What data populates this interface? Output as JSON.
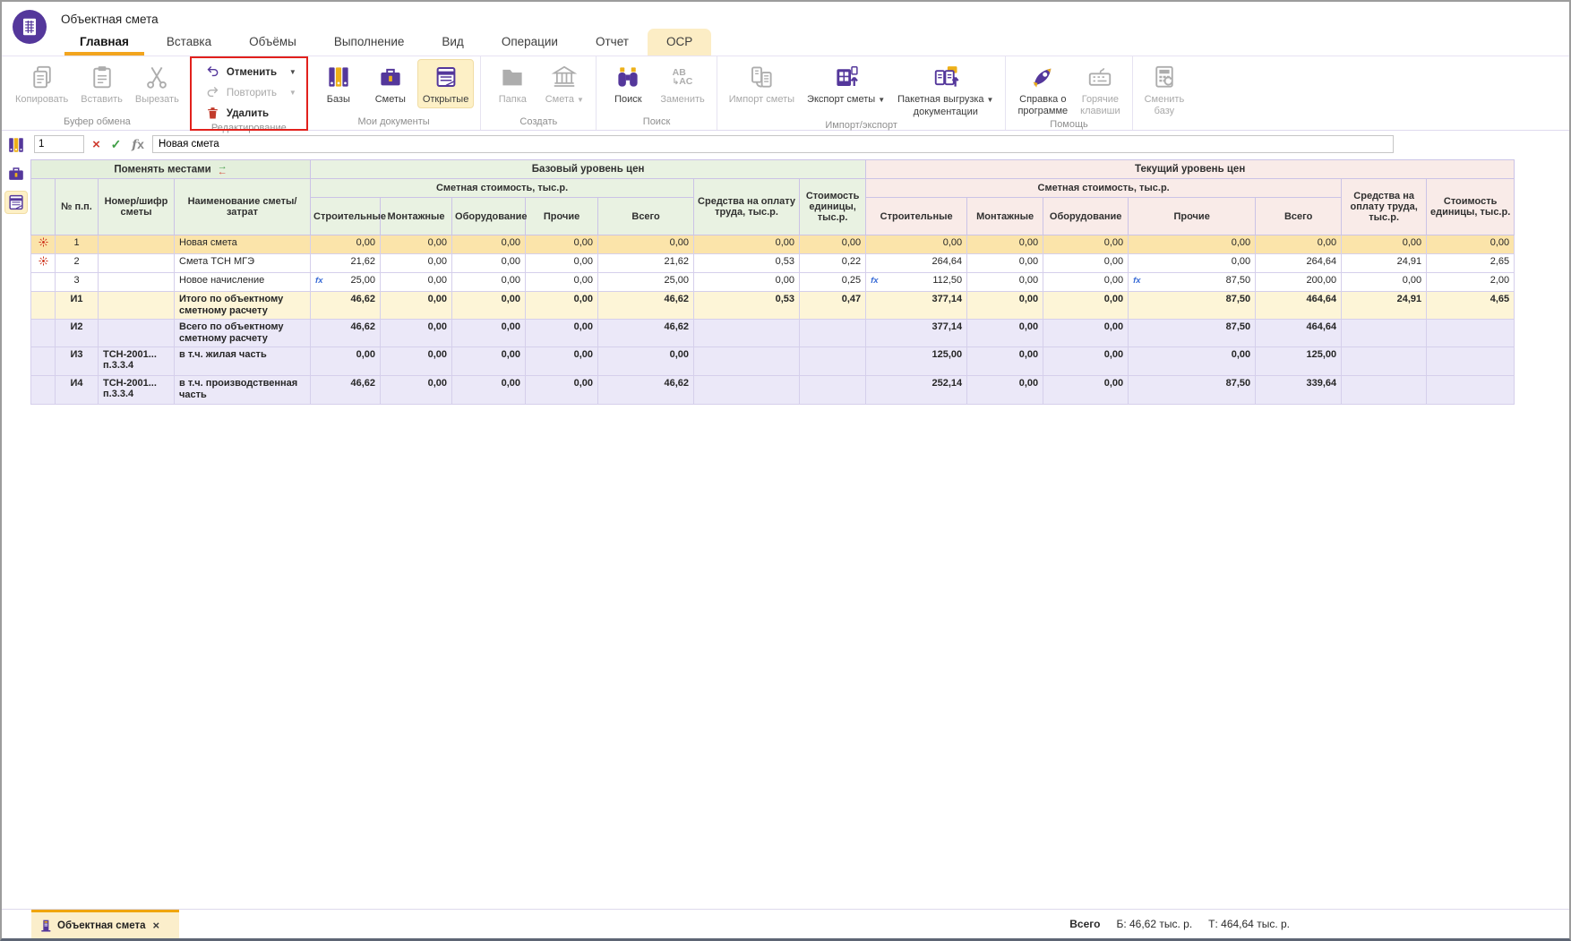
{
  "window": {
    "title": "Объектная смета"
  },
  "colors": {
    "accent_purple": "#54379b",
    "accent_yellow": "#edb019",
    "tab_underline": "#f2a51e",
    "red_annotation": "#e2211c",
    "selected_row": "#fbe4aa",
    "header_green": "#e9f2e2",
    "header_pink": "#f9ebe8",
    "total_cream": "#fdf5d7",
    "total_lavender": "#ebe8f8"
  },
  "tabs": [
    {
      "id": "home",
      "label": "Главная",
      "active": true
    },
    {
      "id": "insert",
      "label": "Вставка"
    },
    {
      "id": "volumes",
      "label": "Объёмы"
    },
    {
      "id": "execution",
      "label": "Выполнение"
    },
    {
      "id": "view",
      "label": "Вид"
    },
    {
      "id": "operations",
      "label": "Операции"
    },
    {
      "id": "report",
      "label": "Отчет"
    },
    {
      "id": "osr",
      "label": "ОСР",
      "highlighted": true
    }
  ],
  "ribbon": {
    "groups": [
      {
        "label": "Буфер обмена",
        "type": "large",
        "buttons": [
          {
            "id": "copy",
            "label": "Копировать",
            "icon": "copy-icon",
            "disabled": true
          },
          {
            "id": "paste",
            "label": "Вставить",
            "icon": "paste-icon",
            "disabled": true
          },
          {
            "id": "cut",
            "label": "Вырезать",
            "icon": "cut-icon",
            "disabled": true
          }
        ]
      },
      {
        "label": "Редактирование",
        "type": "stacked",
        "red_box": true,
        "buttons": [
          {
            "id": "undo",
            "label": "Отменить",
            "icon": "undo-icon",
            "caret": true
          },
          {
            "id": "redo",
            "label": "Повторить",
            "icon": "redo-icon",
            "caret": true,
            "disabled": true
          },
          {
            "id": "delete",
            "label": "Удалить",
            "icon": "trash-icon",
            "color": "#c23b2b"
          }
        ]
      },
      {
        "label": "Мои документы",
        "type": "large",
        "buttons": [
          {
            "id": "bases",
            "label": "Базы",
            "icon": "bases-icon"
          },
          {
            "id": "estimates",
            "label": "Сметы",
            "icon": "estimates-icon"
          },
          {
            "id": "open-docs",
            "label": "Открытые",
            "icon": "open-docs-icon",
            "selected": true
          }
        ]
      },
      {
        "label": "Создать",
        "type": "large",
        "buttons": [
          {
            "id": "folder",
            "label": "Папка",
            "icon": "folder-icon",
            "disabled": true
          },
          {
            "id": "new-estimate",
            "label": "Смета",
            "icon": "building-icon",
            "disabled": true,
            "caret": true
          }
        ]
      },
      {
        "label": "Поиск",
        "type": "large",
        "buttons": [
          {
            "id": "search",
            "label": "Поиск",
            "icon": "search-icon"
          },
          {
            "id": "replace",
            "label": "Заменить",
            "icon": "replace-icon",
            "disabled": true
          }
        ]
      },
      {
        "label": "Импорт/экспорт",
        "type": "large",
        "buttons": [
          {
            "id": "import-estimate",
            "label": "Импорт сметы",
            "icon": "import-icon",
            "disabled": true
          },
          {
            "id": "export-estimate",
            "label": "Экспорт сметы",
            "icon": "export-icon",
            "caret": true
          },
          {
            "id": "batch-export",
            "label": "Пакетная выгрузка\nдокументации",
            "icon": "batch-export-icon",
            "caret": true
          }
        ]
      },
      {
        "label": "Помощь",
        "type": "large",
        "buttons": [
          {
            "id": "help",
            "label": "Справка о\nпрограмме",
            "icon": "rocket-icon"
          },
          {
            "id": "hotkeys",
            "label": "Горячие\nклавиши",
            "icon": "keyboard-icon",
            "disabled": true
          }
        ]
      },
      {
        "label": "",
        "type": "large",
        "buttons": [
          {
            "id": "change-base",
            "label": "Сменить\nбазу",
            "icon": "calculator-icon",
            "disabled": true
          }
        ]
      }
    ]
  },
  "sidebar": {
    "items": [
      {
        "id": "bases",
        "icon": "bases-icon"
      },
      {
        "id": "estimates",
        "icon": "estimates-icon"
      },
      {
        "id": "open-docs",
        "icon": "open-docs-icon",
        "selected": true
      }
    ]
  },
  "formula_bar": {
    "row_number": "1",
    "cancel_icon": "×",
    "apply_icon": "✓",
    "fx_label": "fx",
    "value": "Новая смета"
  },
  "table": {
    "header": {
      "swap_label": "Поменять местами",
      "base_section": "Базовый уровень цен",
      "current_section": "Текущий уровень цен",
      "cost_group": "Сметная стоимость, тыс.р.",
      "labor_col": "Средства на оплату труда, тыс.р.",
      "unit_cost_col": "Стоимость единицы, тыс.р.",
      "num_col": "№ п.п.",
      "code_col": "Номер/шифр сметы",
      "name_col": "Наименование сметы/ затрат",
      "cost_cols": [
        "Строительные",
        "Монтажные",
        "Оборудование",
        "Прочие",
        "Всего"
      ]
    },
    "rows": [
      {
        "marker": true,
        "num": "1",
        "code": "",
        "name": "Новая смета",
        "style": "selected",
        "base": [
          "0,00",
          "0,00",
          "0,00",
          "0,00",
          "0,00",
          "0,00",
          "0,00"
        ],
        "current": [
          "0,00",
          "0,00",
          "0,00",
          "0,00",
          "0,00",
          "0,00",
          "0,00"
        ]
      },
      {
        "marker": true,
        "num": "2",
        "code": "",
        "name": "Смета ТСН МГЭ",
        "style": "normal",
        "base": [
          "21,62",
          "0,00",
          "0,00",
          "0,00",
          "21,62",
          "0,53",
          "0,22"
        ],
        "current": [
          "264,64",
          "0,00",
          "0,00",
          "0,00",
          "264,64",
          "24,91",
          "2,65"
        ]
      },
      {
        "marker": false,
        "num": "3",
        "code": "",
        "name": "Новое начисление",
        "style": "normal",
        "base": [
          {
            "v": "25,00",
            "fx": true
          },
          "0,00",
          "0,00",
          "0,00",
          "25,00",
          "0,00",
          "0,25"
        ],
        "current": [
          {
            "v": "112,50",
            "fx": true
          },
          "0,00",
          "0,00",
          {
            "v": "87,50",
            "fx": true
          },
          "200,00",
          "0,00",
          "2,00"
        ]
      },
      {
        "marker": false,
        "num": "И1",
        "code": "",
        "name": "Итого по объектному сметному расчету",
        "style": "total-primary",
        "base": [
          "46,62",
          "0,00",
          "0,00",
          "0,00",
          "46,62",
          "0,53",
          "0,47"
        ],
        "current": [
          "377,14",
          "0,00",
          "0,00",
          "87,50",
          "464,64",
          "24,91",
          "4,65"
        ]
      },
      {
        "marker": false,
        "num": "И2",
        "code": "",
        "name": "Всего по объектному сметному расчету",
        "style": "total-secondary",
        "base": [
          "46,62",
          "0,00",
          "0,00",
          "0,00",
          "46,62",
          "",
          ""
        ],
        "current": [
          "377,14",
          "0,00",
          "0,00",
          "87,50",
          "464,64",
          "",
          ""
        ]
      },
      {
        "marker": false,
        "num": "И3",
        "code": "ТСН-2001... п.3.3.4",
        "name": "в т.ч. жилая часть",
        "style": "total-secondary",
        "base": [
          "0,00",
          "0,00",
          "0,00",
          "0,00",
          "0,00",
          "",
          ""
        ],
        "current": [
          "125,00",
          "0,00",
          "0,00",
          "0,00",
          "125,00",
          "",
          ""
        ]
      },
      {
        "marker": false,
        "num": "И4",
        "code": "ТСН-2001... п.3.3.4",
        "name": "в т.ч. производственная часть",
        "style": "total-secondary",
        "base": [
          "46,62",
          "0,00",
          "0,00",
          "0,00",
          "46,62",
          "",
          ""
        ],
        "current": [
          "252,14",
          "0,00",
          "0,00",
          "87,50",
          "339,64",
          "",
          ""
        ]
      }
    ]
  },
  "document_tabs": {
    "label": "Объектная смета",
    "close_icon": "×"
  },
  "status_bar": {
    "total_label": "Всего",
    "base_total": "Б: 46,62 тыс. р.",
    "current_total": "Т: 464,64 тыс. р."
  }
}
